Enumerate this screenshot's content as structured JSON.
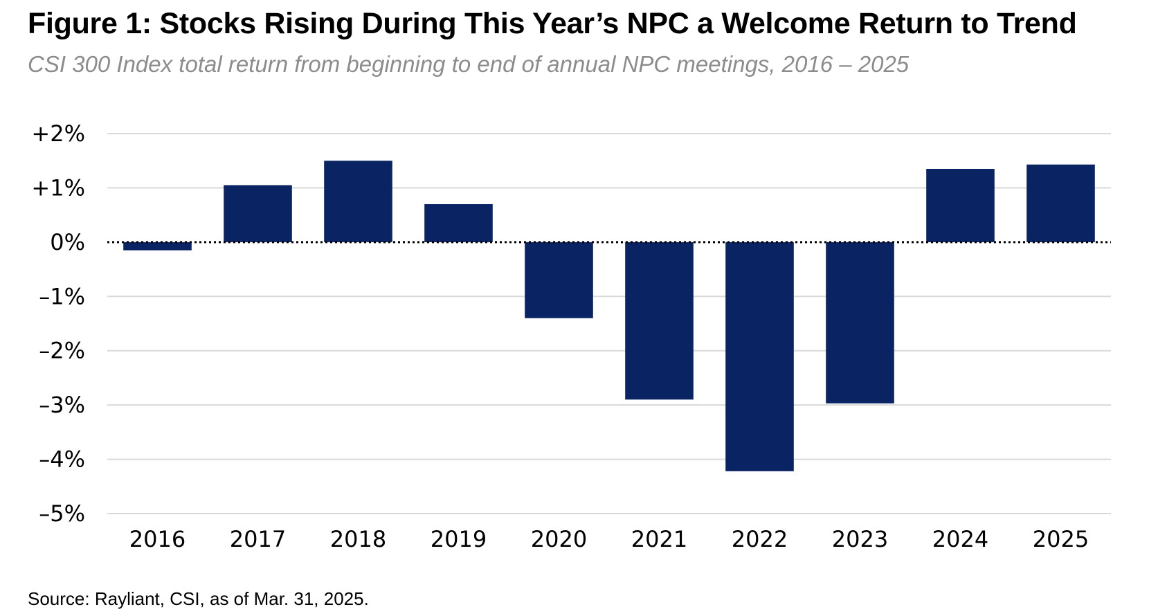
{
  "title": "Figure 1: Stocks Rising During This Year’s NPC a Welcome Return to Trend",
  "subtitle": "CSI 300 Index total return from beginning to end of annual NPC meetings, 2016 – 2025",
  "source": "Source: Rayliant, CSI, as of Mar. 31, 2025.",
  "colors": {
    "bar": "#0a2463",
    "grid": "#d9d9d9",
    "zero_line": "#000000"
  },
  "chart_data": {
    "type": "bar",
    "title": "Figure 1: Stocks Rising During This Year’s NPC a Welcome Return to Trend",
    "subtitle": "CSI 300 Index total return from beginning to end of annual NPC meetings, 2016 – 2025",
    "xlabel": "",
    "ylabel": "",
    "categories": [
      "2016",
      "2017",
      "2018",
      "2019",
      "2020",
      "2021",
      "2022",
      "2023",
      "2024",
      "2025"
    ],
    "values": [
      -0.15,
      1.05,
      1.5,
      0.7,
      -1.4,
      -2.9,
      -4.22,
      -2.97,
      1.35,
      1.43
    ],
    "ylim": [
      -5,
      2
    ],
    "yticks": [
      2,
      1,
      0,
      -1,
      -2,
      -3,
      -4,
      -5
    ],
    "ytick_labels": [
      "+2%",
      "+1%",
      "0%",
      "–1%",
      "–2%",
      "–3%",
      "–4%",
      "–5%"
    ],
    "grid": true,
    "zero_line_style": "dotted",
    "legend": "none"
  }
}
